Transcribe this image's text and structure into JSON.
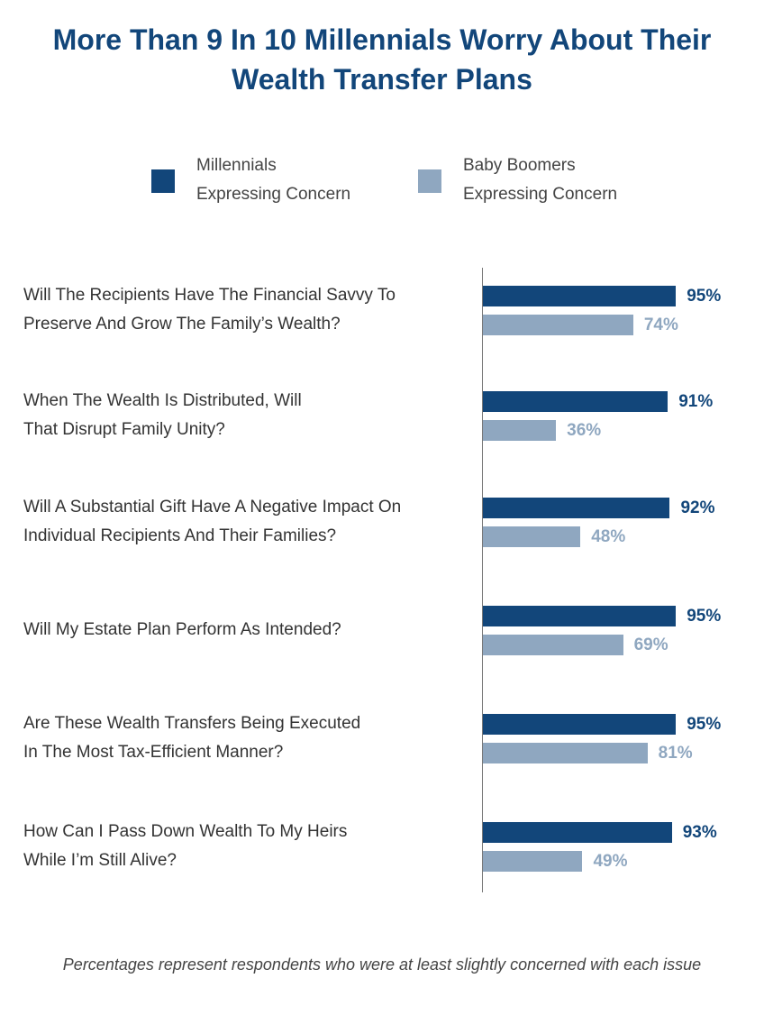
{
  "chart_data": {
    "type": "bar",
    "orientation": "horizontal",
    "title_line1": "More Than 9 In 10 Millennials Worry About Their",
    "title_line2": "Wealth Transfer Plans",
    "categories": [
      [
        "Will The Recipients Have The Financial Savvy To",
        "Preserve And Grow The Family’s Wealth?"
      ],
      [
        "When The Wealth Is Distributed, Will",
        "That Disrupt Family Unity?"
      ],
      [
        "Will A Substantial Gift Have A Negative Impact On",
        "Individual Recipients And Their Families?"
      ],
      [
        "Will My Estate Plan Perform As Intended?"
      ],
      [
        "Are These Wealth Transfers Being Executed",
        "In The Most Tax-Efficient Manner?"
      ],
      [
        "How Can I Pass Down Wealth To My Heirs",
        "While I’m Still Alive?"
      ]
    ],
    "series": [
      {
        "name_line1": "Millennials",
        "name_line2": "Expressing Concern",
        "color": "#12467a",
        "values": [
          95,
          91,
          92,
          95,
          95,
          93
        ],
        "labels": [
          "95%",
          "91%",
          "92%",
          "95%",
          "95%",
          "93%"
        ]
      },
      {
        "name_line1": "Baby Boomers",
        "name_line2": "Expressing Concern",
        "color": "#8fa7c0",
        "values": [
          74,
          36,
          48,
          69,
          81,
          49
        ],
        "labels": [
          "74%",
          "36%",
          "48%",
          "69%",
          "81%",
          "49%"
        ]
      }
    ],
    "xlim": [
      0,
      100
    ],
    "legend_position": "top",
    "footnote": "Percentages represent respondents who were at least slightly concerned with each issue"
  }
}
